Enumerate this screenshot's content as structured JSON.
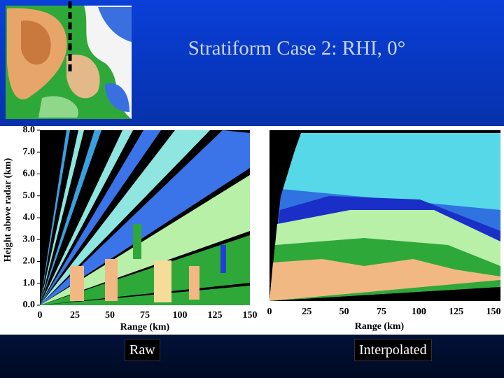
{
  "title": "Stratiform Case 2:  RHI, 0°",
  "left_panel": {
    "caption": "Raw",
    "ylabel": "Height above radar (km)",
    "xlabel": "Range (km)",
    "yticks": [
      "8.0",
      "7.0",
      "6.0",
      "5.0",
      "4.0",
      "3.0",
      "2.0",
      "1.0",
      "0.0"
    ],
    "xticks": [
      "0",
      "25",
      "50",
      "75",
      "100",
      "125",
      "150"
    ]
  },
  "right_panel": {
    "caption": "Interpolated",
    "xlabel": "Range (km)",
    "xticks": [
      "0",
      "25",
      "50",
      "75",
      "100",
      "125",
      "150"
    ]
  }
}
